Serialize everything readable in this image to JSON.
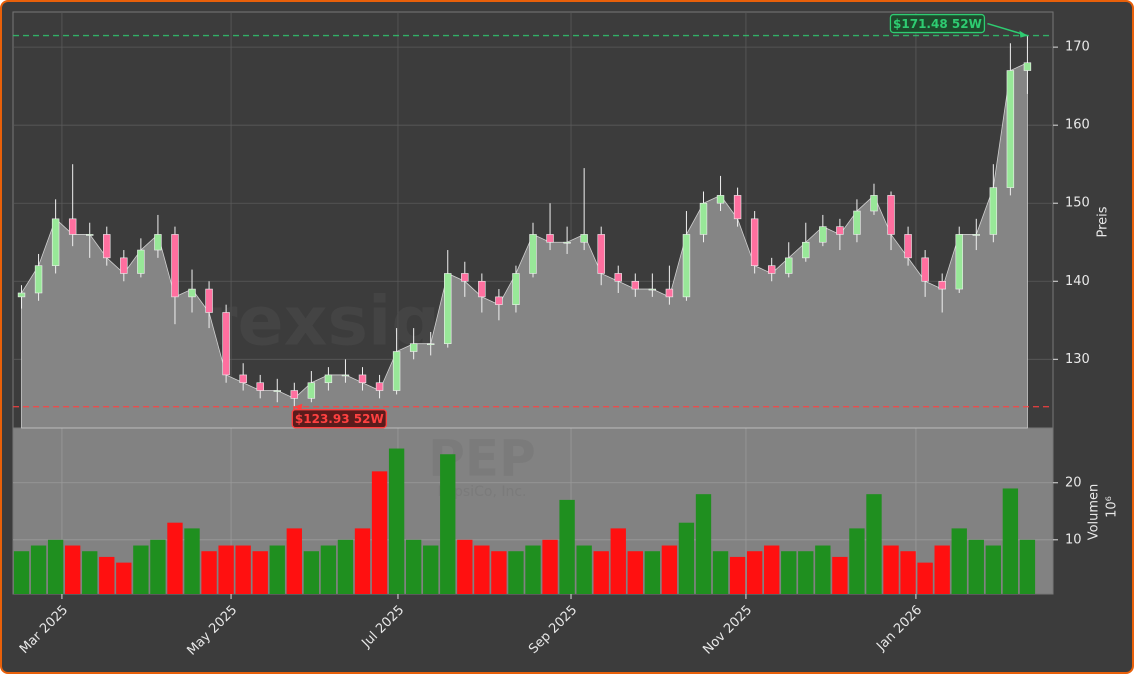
{
  "chart_data": {
    "type": "candlestick",
    "watermark": "forexsignale.trade",
    "symbol": "PEP",
    "company": "PepsiCo, Inc.",
    "ylabel": "Preis",
    "volume_label": "Volumen",
    "volume_exponent": "10⁶",
    "open": [
      138,
      138.5,
      142,
      148,
      146,
      146,
      143,
      141,
      144,
      146,
      138,
      139,
      136,
      128,
      127,
      126,
      126,
      125,
      127,
      128,
      128,
      127,
      126,
      131,
      132,
      132,
      141,
      140,
      138,
      137,
      141,
      146,
      145,
      145,
      146,
      141,
      140,
      139,
      139,
      138,
      146,
      150,
      151,
      148,
      142,
      141,
      143,
      145,
      147,
      146,
      149,
      151,
      146,
      143,
      140,
      139,
      146,
      146,
      152,
      167
    ],
    "high": [
      139.5,
      143.5,
      150.5,
      155,
      147.5,
      147,
      144,
      145.5,
      148.5,
      147,
      141.5,
      140,
      137,
      129.5,
      128,
      127.5,
      127,
      128.5,
      129,
      130,
      129,
      128,
      134,
      134,
      133.5,
      144,
      142.5,
      141,
      139,
      142,
      147.5,
      150,
      147,
      154.5,
      147,
      142,
      141,
      141,
      142,
      149,
      151.5,
      153.5,
      152,
      149,
      143,
      145,
      147.5,
      148.5,
      148,
      150.5,
      152.5,
      151.5,
      147,
      144,
      141,
      147,
      148,
      155,
      170.5,
      171.48
    ],
    "low": [
      136.5,
      137.5,
      141,
      144.5,
      143,
      142,
      140,
      140.5,
      143,
      134.5,
      136,
      134,
      127,
      126,
      125,
      124.5,
      123.93,
      124.5,
      126,
      127,
      126,
      125,
      125.5,
      130,
      130.5,
      131.5,
      138,
      136,
      135,
      136,
      140.5,
      144,
      143.5,
      144,
      139.5,
      138.5,
      138,
      138,
      137,
      137.5,
      145,
      149,
      147,
      141,
      140,
      140.5,
      142.5,
      144.5,
      144,
      145,
      148.5,
      144,
      142,
      138,
      136,
      138.5,
      144,
      145,
      151,
      164
    ],
    "close": [
      138.5,
      142,
      148,
      146,
      146,
      143,
      141,
      144,
      146,
      138,
      139,
      136,
      128,
      127,
      126,
      126,
      125,
      127,
      128,
      128,
      127,
      126,
      131,
      132,
      132,
      141,
      140,
      138,
      137,
      141,
      146,
      145,
      145,
      146,
      141,
      140,
      139,
      139,
      138,
      146,
      150,
      151,
      148,
      142,
      141,
      143,
      145,
      147,
      146,
      149,
      151,
      146,
      143,
      140,
      139,
      146,
      146,
      152,
      167,
      168
    ],
    "volume": [
      8,
      9,
      10,
      9,
      8,
      7,
      6,
      9,
      10,
      13,
      12,
      8,
      9,
      9,
      8,
      9,
      12,
      8,
      9,
      10,
      12,
      22,
      26,
      10,
      9,
      25,
      10,
      9,
      8,
      8,
      9,
      10,
      17,
      9,
      8,
      12,
      8,
      8,
      9,
      13,
      18,
      8,
      7,
      8,
      9,
      8,
      8,
      9,
      7,
      12,
      18,
      9,
      8,
      6,
      9,
      12,
      10,
      9,
      19,
      10
    ],
    "up_color": "#98e898",
    "down_color": "#ff6f9f",
    "volume_up_color": "#1f8f1f",
    "volume_down_color": "#ff1010",
    "area_color": "#858585",
    "xlim": [
      -0.5,
      60.5
    ],
    "xticks": [
      {
        "value": 2.37,
        "label": "Mar 2025"
      },
      {
        "value": 12.29,
        "label": "May 2025"
      },
      {
        "value": 22.08,
        "label": "Jul 2025"
      },
      {
        "value": 32.23,
        "label": "Sep 2025"
      },
      {
        "value": 42.49,
        "label": "Nov 2025"
      },
      {
        "value": 52.46,
        "label": "Jan 2026"
      }
    ],
    "ylim": [
      121.2,
      174.5
    ],
    "yticks": [
      130,
      140,
      150,
      160,
      170
    ],
    "volume_ylim": [
      0.5,
      29.6
    ],
    "volume_yticks": [
      10,
      20
    ],
    "grid": true,
    "annotations": [
      {
        "label": "$171.48 52W",
        "value": 171.48,
        "index": 59,
        "color": "#2ecc71"
      },
      {
        "label": "$123.93 52W",
        "value": 123.93,
        "index": 16,
        "color": "#ff4040"
      }
    ]
  }
}
